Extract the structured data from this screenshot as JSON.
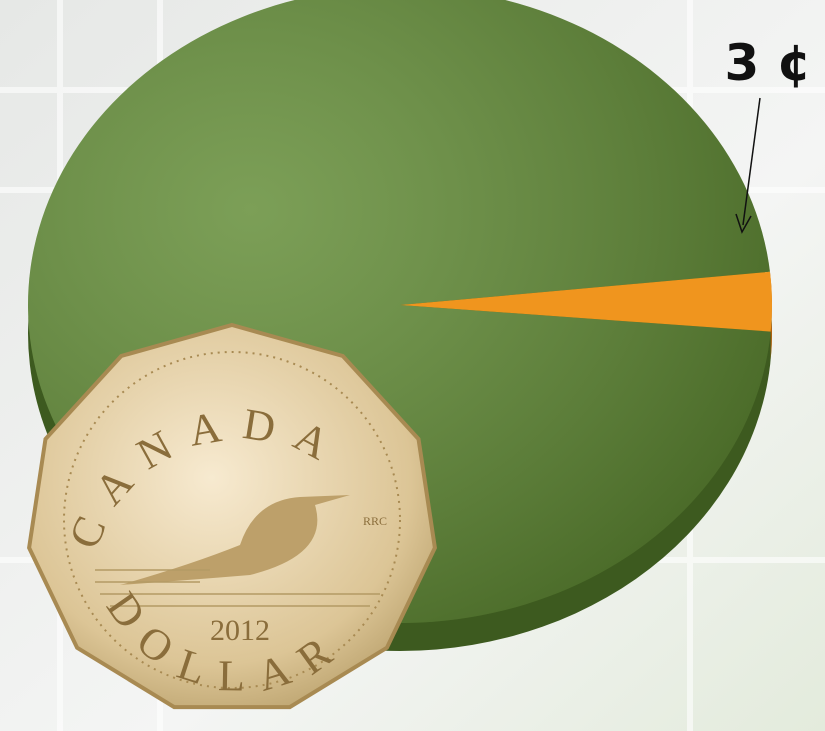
{
  "chart_data": {
    "type": "pie",
    "values": [
      97,
      3
    ],
    "value_labels": [
      null,
      "3 ¢"
    ],
    "colors": [
      "#5f8a32",
      "#f0951e"
    ]
  },
  "coin": {
    "top": "CANADA",
    "bottom": "DOLLAR",
    "year": "2012",
    "mint_mark": "RRC"
  }
}
